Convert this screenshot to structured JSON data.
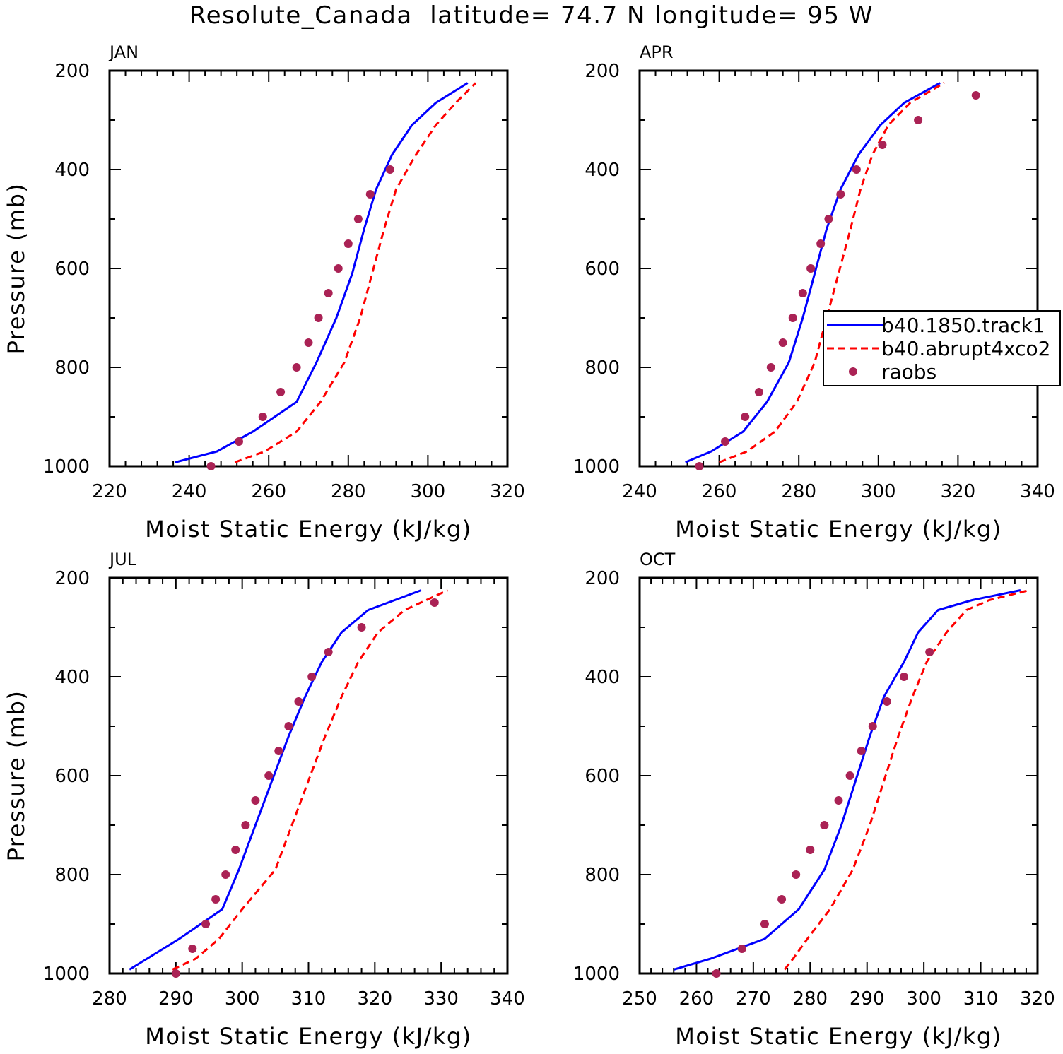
{
  "figure": {
    "title": "Resolute_Canada  latitude= 74.7 N longitude= 95 W"
  },
  "colors": {
    "control": "#0000ff",
    "abrupt": "#ff0000",
    "raobs": "#aa2255"
  },
  "chart_data": [
    {
      "type": "line",
      "panel": "JAN",
      "xlabel": "Moist Static Energy (kJ/kg)",
      "ylabel": "Pressure (mb)",
      "xlim": [
        220,
        320
      ],
      "ylim": [
        1000,
        200
      ],
      "y_reversed": true,
      "xticks": [
        220,
        240,
        260,
        280,
        300,
        320
      ],
      "yticks": [
        200,
        400,
        600,
        800,
        1000
      ],
      "series": [
        {
          "key": "control",
          "style": "solid",
          "x": [
            236.5,
            247,
            256,
            267,
            272,
            277,
            281,
            284,
            287,
            291,
            296,
            302,
            310
          ],
          "y": [
            992,
            970,
            930,
            870,
            790,
            700,
            610,
            520,
            440,
            370,
            310,
            265,
            225
          ]
        },
        {
          "key": "abrupt",
          "style": "dashed",
          "x": [
            251.5,
            259,
            267,
            273,
            279,
            283,
            286,
            289,
            292,
            297,
            302,
            307,
            312
          ],
          "y": [
            992,
            970,
            930,
            870,
            790,
            700,
            610,
            520,
            440,
            370,
            310,
            265,
            225
          ]
        },
        {
          "key": "raobs",
          "style": "points",
          "x": [
            245.5,
            252.5,
            258.5,
            263,
            267,
            270,
            272.5,
            275,
            277.5,
            280,
            282.5,
            285.5,
            290.5
          ],
          "y": [
            1000,
            950,
            900,
            850,
            800,
            750,
            700,
            650,
            600,
            550,
            500,
            450,
            400
          ]
        }
      ]
    },
    {
      "type": "line",
      "panel": "APR",
      "xlabel": "Moist Static Energy (kJ/kg)",
      "ylabel": "",
      "xlim": [
        240,
        340
      ],
      "ylim": [
        1000,
        200
      ],
      "y_reversed": true,
      "xticks": [
        240,
        260,
        280,
        300,
        320,
        340
      ],
      "yticks": [
        200,
        400,
        600,
        800,
        1000
      ],
      "legend": {
        "placement": "right",
        "entries": [
          {
            "key": "control",
            "label": "b40.1850.track1"
          },
          {
            "key": "abrupt",
            "label": "b40.abrupt4xco2"
          },
          {
            "key": "raobs",
            "label": "raobs"
          }
        ]
      },
      "series": [
        {
          "key": "control",
          "style": "solid",
          "x": [
            251.5,
            258,
            266,
            272,
            277.5,
            281,
            284,
            287,
            290.5,
            295,
            300.5,
            306.5,
            315.5
          ],
          "y": [
            992,
            970,
            930,
            870,
            790,
            700,
            610,
            520,
            440,
            370,
            310,
            265,
            225
          ]
        },
        {
          "key": "abrupt",
          "style": "dashed",
          "x": [
            260,
            267,
            274,
            279.5,
            284,
            287,
            290,
            293,
            295.5,
            298.5,
            302.5,
            308,
            316.5
          ],
          "y": [
            992,
            970,
            930,
            870,
            790,
            700,
            610,
            520,
            440,
            370,
            310,
            265,
            225
          ]
        },
        {
          "key": "raobs",
          "style": "points",
          "x": [
            255,
            261.5,
            266.5,
            270,
            273,
            276,
            278.5,
            281,
            283,
            285.5,
            287.5,
            290.5,
            294.5,
            301,
            310,
            324.5
          ],
          "y": [
            1000,
            950,
            900,
            850,
            800,
            750,
            700,
            650,
            600,
            550,
            500,
            450,
            400,
            350,
            300,
            250
          ]
        }
      ]
    },
    {
      "type": "line",
      "panel": "JUL",
      "xlabel": "Moist Static Energy (kJ/kg)",
      "ylabel": "Pressure (mb)",
      "xlim": [
        280,
        340
      ],
      "ylim": [
        1000,
        200
      ],
      "y_reversed": true,
      "xticks": [
        280,
        290,
        300,
        310,
        320,
        330,
        340
      ],
      "yticks": [
        200,
        400,
        600,
        800,
        1000
      ],
      "series": [
        {
          "key": "control",
          "style": "solid",
          "x": [
            283,
            290.5,
            297,
            299.5,
            302,
            304.5,
            307,
            309.5,
            312,
            315,
            319,
            323,
            327
          ],
          "y": [
            992,
            930,
            870,
            790,
            700,
            610,
            520,
            440,
            370,
            310,
            265,
            245,
            225
          ]
        },
        {
          "key": "abrupt",
          "style": "dashed",
          "x": [
            289.5,
            293,
            296.5,
            300,
            305,
            307.5,
            310,
            312.5,
            315,
            317.5,
            320.5,
            324.5,
            331
          ],
          "y": [
            992,
            970,
            930,
            870,
            790,
            700,
            610,
            520,
            440,
            370,
            310,
            265,
            225
          ]
        },
        {
          "key": "raobs",
          "style": "points",
          "x": [
            290,
            292.5,
            294.5,
            296,
            297.5,
            299,
            300.5,
            302,
            304,
            305.5,
            307,
            308.5,
            310.5,
            313,
            318,
            329
          ],
          "y": [
            1000,
            950,
            900,
            850,
            800,
            750,
            700,
            650,
            600,
            550,
            500,
            450,
            400,
            350,
            300,
            250
          ]
        }
      ]
    },
    {
      "type": "line",
      "panel": "OCT",
      "xlabel": "Moist Static Energy (kJ/kg)",
      "ylabel": "",
      "xlim": [
        250,
        320
      ],
      "ylim": [
        1000,
        200
      ],
      "y_reversed": true,
      "xticks": [
        250,
        260,
        270,
        280,
        290,
        300,
        310,
        320
      ],
      "yticks": [
        200,
        400,
        600,
        800,
        1000
      ],
      "series": [
        {
          "key": "control",
          "style": "solid",
          "x": [
            256,
            262.5,
            272,
            278,
            282.5,
            285.5,
            288,
            290.5,
            293,
            296.5,
            299,
            302.5,
            308.5,
            317
          ],
          "y": [
            992,
            970,
            930,
            870,
            790,
            700,
            610,
            520,
            440,
            370,
            310,
            265,
            245,
            225
          ]
        },
        {
          "key": "abrupt",
          "style": "dashed",
          "x": [
            275.5,
            277,
            279.5,
            283.5,
            287.5,
            290.5,
            293,
            295.5,
            298,
            300.5,
            304,
            307.5,
            311.5,
            318.5
          ],
          "y": [
            992,
            970,
            930,
            870,
            790,
            700,
            610,
            520,
            440,
            370,
            310,
            265,
            245,
            225
          ]
        },
        {
          "key": "raobs",
          "style": "points",
          "x": [
            263.5,
            268,
            272,
            275,
            277.5,
            280,
            282.5,
            285,
            287,
            289,
            291,
            293.5,
            296.5,
            301
          ],
          "y": [
            1000,
            950,
            900,
            850,
            800,
            750,
            700,
            650,
            600,
            550,
            500,
            450,
            400,
            350
          ]
        }
      ]
    }
  ]
}
